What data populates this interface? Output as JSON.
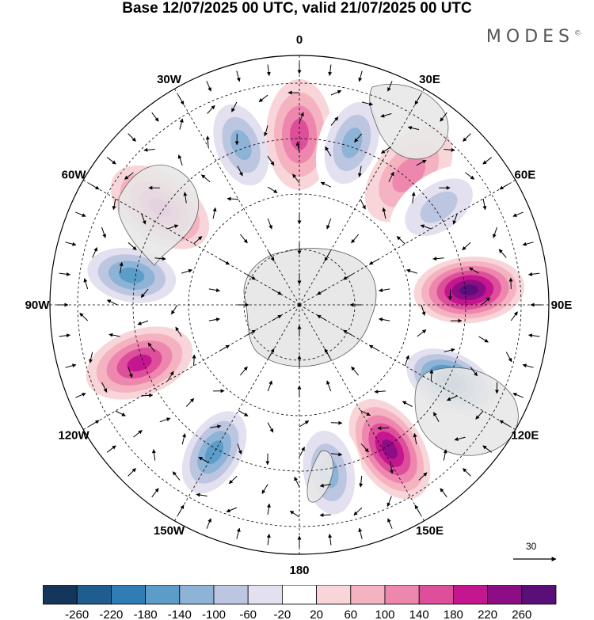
{
  "title": "Base 12/07/2025 00 UTC, valid 21/07/2025 00 UTC",
  "brand": "MODES",
  "brand_mark": "©",
  "longitude_labels": [
    "0",
    "30E",
    "60E",
    "90E",
    "120E",
    "150E",
    "180",
    "150W",
    "120W",
    "90W",
    "60W",
    "30W"
  ],
  "reference_vector_label": "30",
  "colorbar": {
    "labels": [
      "-260",
      "-220",
      "-180",
      "-140",
      "-100",
      "-60",
      "-20",
      "20",
      "60",
      "100",
      "140",
      "180",
      "220",
      "260"
    ],
    "colors": [
      "#13365a",
      "#1f5c8f",
      "#2f7db4",
      "#5c9cc9",
      "#8db3d6",
      "#bdc6e0",
      "#e3e0ef",
      "#ffffff",
      "#f8d5d8",
      "#f5b2c1",
      "#ee87ae",
      "#de4f9b",
      "#c4168e",
      "#8d0d85",
      "#5a0f78"
    ]
  },
  "map": {
    "projection": "south-polar-stereographic",
    "field": "anomaly",
    "colors": {
      "land": "#e8e8e8",
      "coast": "#555555",
      "grid": "#000000"
    },
    "anomalies": [
      {
        "lon": 85,
        "value": 240
      },
      {
        "lon": 117,
        "value": -260
      },
      {
        "lon": 148,
        "value": 200
      },
      {
        "lon": 170,
        "value": -140
      },
      {
        "lon": -150,
        "value": -160
      },
      {
        "lon": -110,
        "value": 180
      },
      {
        "lon": -80,
        "value": -160
      },
      {
        "lon": -55,
        "value": 160
      },
      {
        "lon": -20,
        "value": -120
      },
      {
        "lon": 0,
        "value": 120
      },
      {
        "lon": 18,
        "value": -120
      },
      {
        "lon": 40,
        "value": 100
      },
      {
        "lon": 55,
        "value": -100
      }
    ]
  }
}
